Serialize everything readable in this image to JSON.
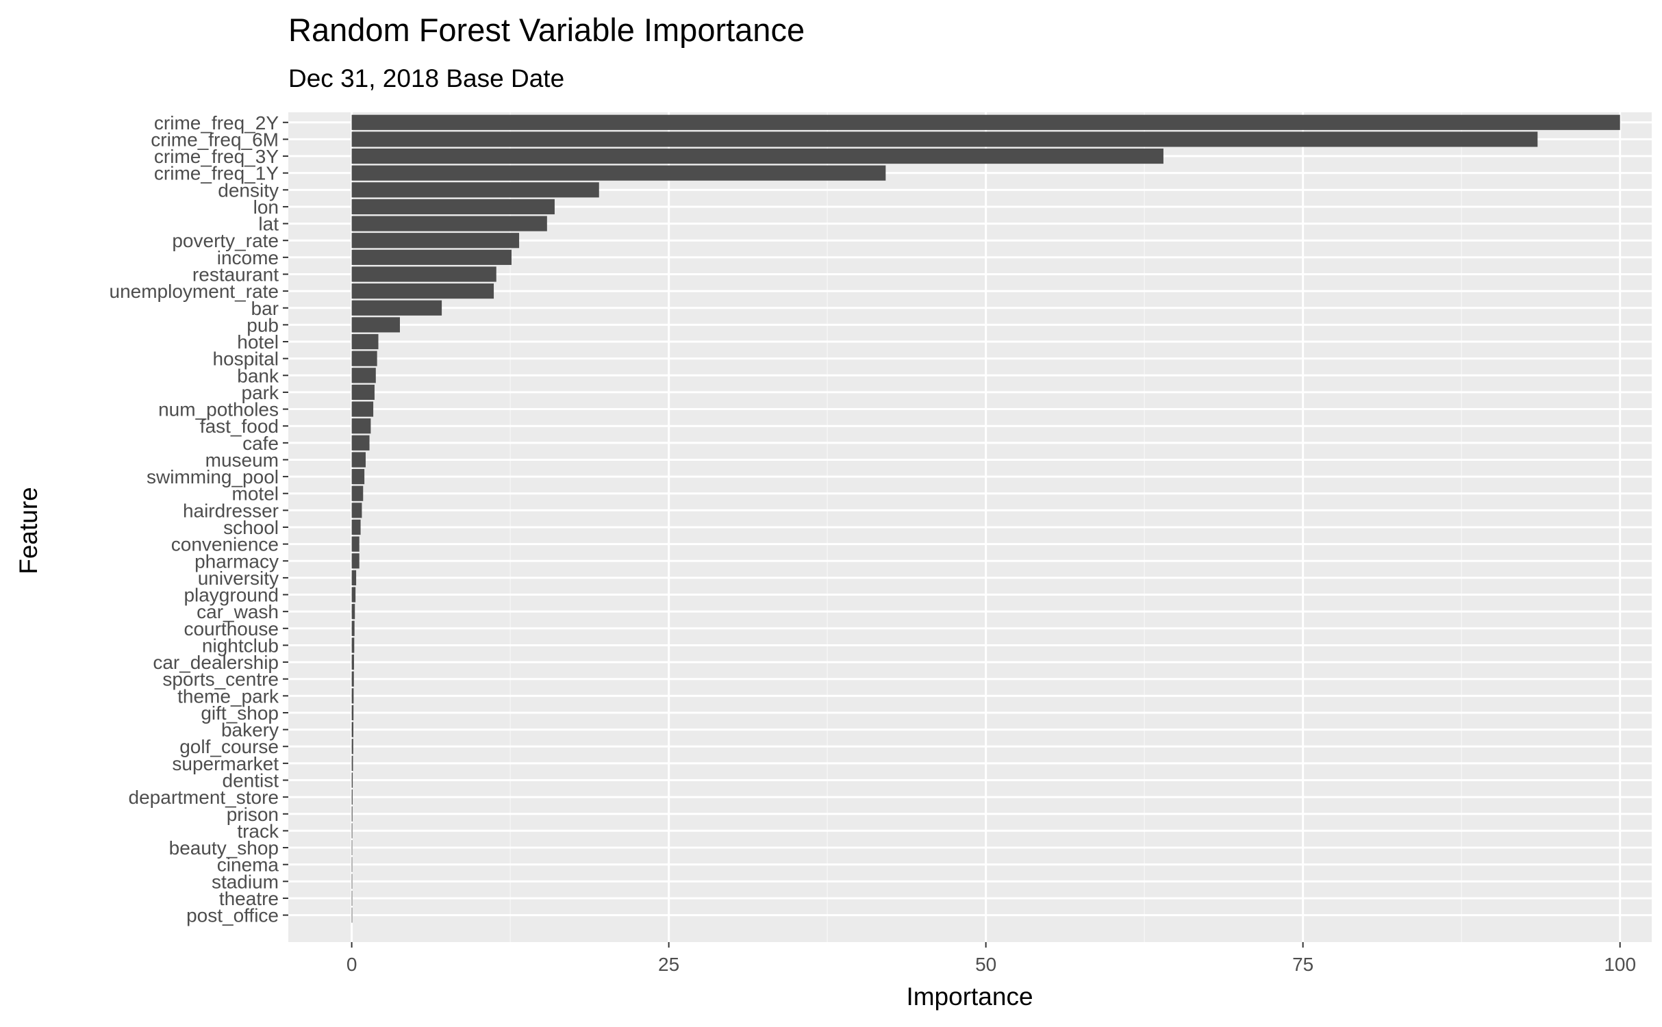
{
  "chart_data": {
    "type": "bar",
    "orientation": "horizontal",
    "title": "Random Forest Variable Importance",
    "subtitle": "Dec 31, 2018 Base Date",
    "xlabel": "Importance",
    "ylabel": "Feature",
    "xlim": [
      -5,
      102.5
    ],
    "xticks": [
      0,
      25,
      50,
      75,
      100
    ],
    "xtick_labels": [
      "0",
      "25",
      "50",
      "75",
      "100"
    ],
    "grid": true,
    "legend": "none",
    "categories": [
      "crime_freq_2Y",
      "crime_freq_6M",
      "crime_freq_3Y",
      "crime_freq_1Y",
      "density",
      "lon",
      "lat",
      "poverty_rate",
      "income",
      "restaurant",
      "unemployment_rate",
      "bar",
      "pub",
      "hotel",
      "hospital",
      "bank",
      "park",
      "num_potholes",
      "fast_food",
      "cafe",
      "museum",
      "swimming_pool",
      "motel",
      "hairdresser",
      "school",
      "convenience",
      "pharmacy",
      "university",
      "playground",
      "car_wash",
      "courthouse",
      "nightclub",
      "car_dealership",
      "sports_centre",
      "theme_park",
      "gift_shop",
      "bakery",
      "golf_course",
      "supermarket",
      "dentist",
      "department_store",
      "prison",
      "track",
      "beauty_shop",
      "cinema",
      "stadium",
      "theatre",
      "post_office"
    ],
    "values": [
      100,
      93.5,
      64,
      42.1,
      19.5,
      16,
      15.4,
      13.2,
      12.6,
      11.4,
      11.2,
      7.1,
      3.8,
      2.1,
      2,
      1.9,
      1.8,
      1.7,
      1.5,
      1.4,
      1.1,
      1,
      0.9,
      0.8,
      0.7,
      0.6,
      0.6,
      0.35,
      0.3,
      0.25,
      0.22,
      0.2,
      0.18,
      0.17,
      0.15,
      0.14,
      0.13,
      0.12,
      0.1,
      0.08,
      0.07,
      0.06,
      0.05,
      0.04,
      0.04,
      0.03,
      0.02,
      0.01
    ],
    "colors": {
      "bar": "#4d4d4d",
      "panel": "#ebebeb",
      "grid_major": "#ffffff",
      "grid_minor": "#f5f5f5",
      "tick_text": "#4d4d4d",
      "tick_mark": "#333333"
    }
  }
}
